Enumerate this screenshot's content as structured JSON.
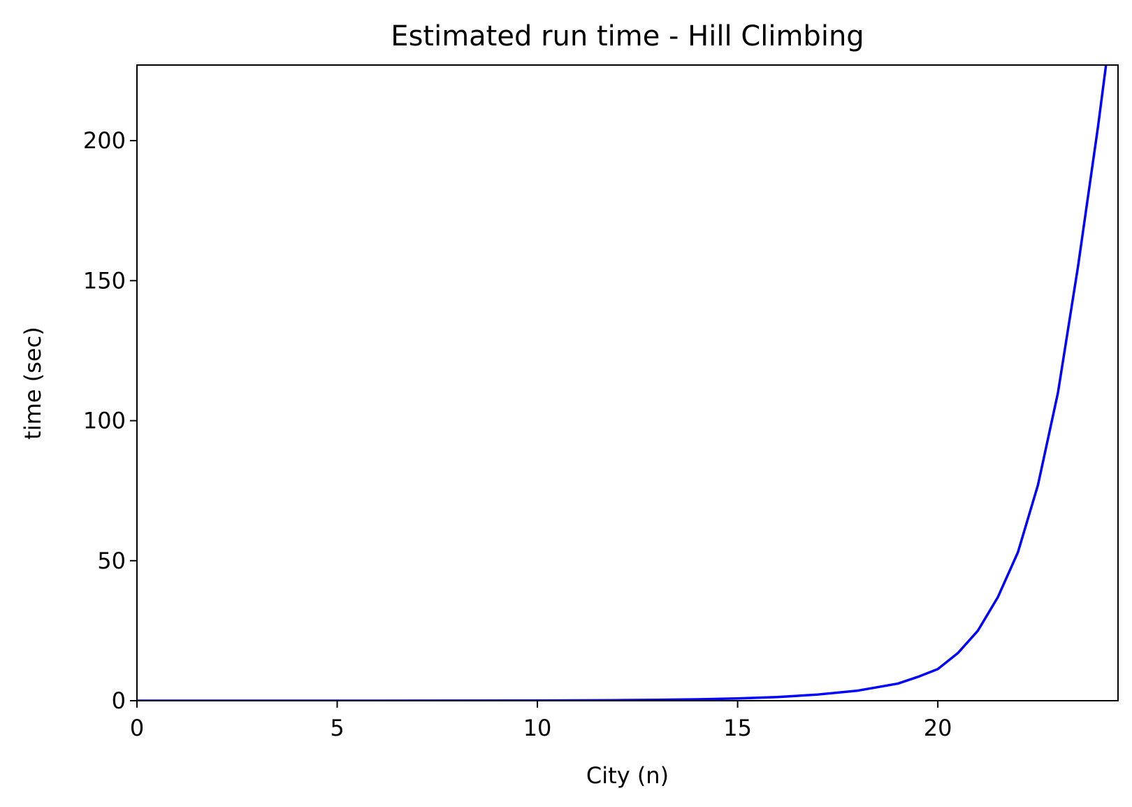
{
  "chart_data": {
    "type": "line",
    "title": "Estimated run time - Hill Climbing",
    "xlabel": "City (n)",
    "ylabel": "time (sec)",
    "xlim": [
      0,
      24.5
    ],
    "ylim": [
      0,
      227
    ],
    "xticks": [
      0,
      5,
      10,
      15,
      20
    ],
    "yticks": [
      0,
      50,
      100,
      150,
      200
    ],
    "grid": false,
    "series": [
      {
        "color": "#0000ff",
        "x": [
          0,
          2,
          4,
          6,
          8,
          10,
          12,
          13,
          14,
          15,
          16,
          17,
          18,
          19,
          19.5,
          20,
          20.5,
          21,
          21.5,
          22,
          22.5,
          23,
          23.5,
          24,
          24.2
        ],
        "y": [
          0.0,
          0.0,
          0.0,
          0.01,
          0.03,
          0.07,
          0.2,
          0.3,
          0.5,
          0.8,
          1.3,
          2.2,
          3.6,
          6.1,
          8.5,
          11.3,
          17,
          25,
          37,
          53,
          77,
          110,
          155,
          205,
          227
        ]
      }
    ]
  }
}
